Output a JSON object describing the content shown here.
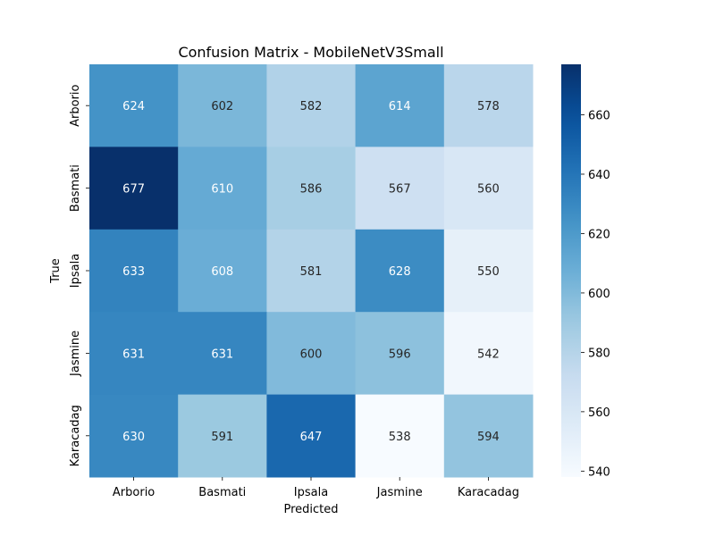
{
  "chart_data": {
    "type": "heatmap",
    "title": "Confusion Matrix - MobileNetV3Small",
    "xlabel": "Predicted",
    "ylabel": "True",
    "x_categories": [
      "Arborio",
      "Basmati",
      "Ipsala",
      "Jasmine",
      "Karacadag"
    ],
    "y_categories": [
      "Arborio",
      "Basmati",
      "Ipsala",
      "Jasmine",
      "Karacadag"
    ],
    "values": [
      [
        624,
        602,
        582,
        614,
        578
      ],
      [
        677,
        610,
        586,
        567,
        560
      ],
      [
        633,
        608,
        581,
        628,
        550
      ],
      [
        631,
        631,
        600,
        596,
        542
      ],
      [
        630,
        591,
        647,
        538,
        594
      ]
    ],
    "colormap": "Blues",
    "colorbar": {
      "min": 538,
      "max": 677,
      "ticks": [
        540,
        560,
        580,
        600,
        620,
        640,
        660
      ]
    }
  }
}
